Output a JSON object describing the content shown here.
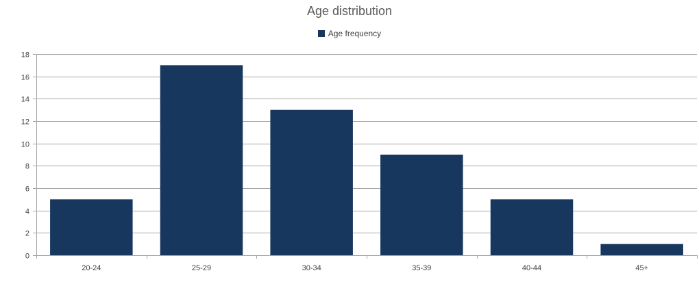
{
  "chart_data": {
    "type": "bar",
    "title": "Age distribution",
    "categories": [
      "20-24",
      "25-29",
      "30-34",
      "35-39",
      "40-44",
      "45+"
    ],
    "series": [
      {
        "name": "Age frequency",
        "values": [
          5,
          17,
          13,
          9,
          5,
          1
        ]
      }
    ],
    "ylim": [
      0,
      18
    ],
    "yticks": [
      0,
      2,
      4,
      6,
      8,
      10,
      12,
      14,
      16,
      18
    ],
    "grid": true,
    "legend_position": "top",
    "bar_color": "#17375e",
    "grid_color": "#a6a6a6"
  }
}
